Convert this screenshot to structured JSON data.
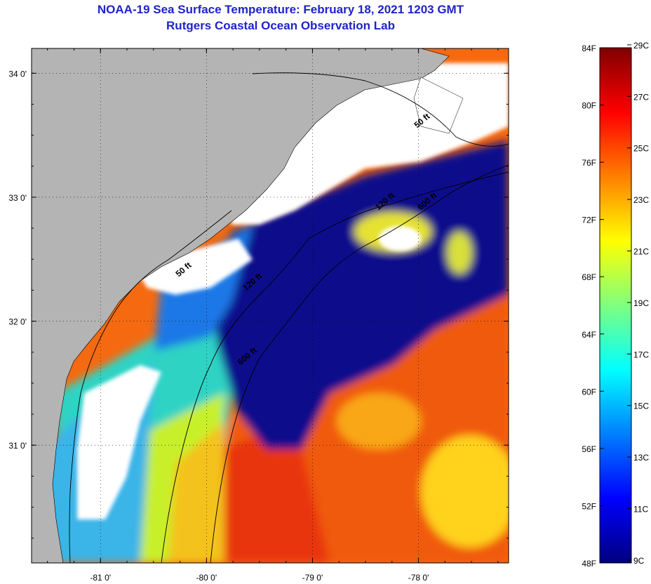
{
  "title": "NOAA-19 Sea Surface Temperature:  February 18, 2021 1203 GMT",
  "subtitle": "Rutgers Coastal Ocean Observation Lab",
  "map": {
    "lon_range": [
      -81.65,
      -77.15
    ],
    "lat_range": [
      30.05,
      34.2
    ],
    "lon_ticks": [
      {
        "value": -81,
        "label": "-81 0'"
      },
      {
        "value": -80,
        "label": "-80 0'"
      },
      {
        "value": -79,
        "label": "-79 0'"
      },
      {
        "value": -78,
        "label": "-78 0'"
      }
    ],
    "lat_ticks": [
      {
        "value": 34,
        "label": "34 0'"
      },
      {
        "value": 33,
        "label": "33 0'"
      },
      {
        "value": 32,
        "label": "32 0'"
      },
      {
        "value": 31,
        "label": "31 0'"
      }
    ],
    "land_color": "#b4b4b4",
    "cloud_color": "#ffffff",
    "grid": true,
    "contour_labels": [
      {
        "text": "50 ft",
        "lon": -77.95,
        "lat": 33.6
      },
      {
        "text": "50 ft",
        "lon": -80.2,
        "lat": 32.4
      },
      {
        "text": "120 ft",
        "lon": -78.3,
        "lat": 32.95
      },
      {
        "text": "120 ft",
        "lon": -79.55,
        "lat": 32.3
      },
      {
        "text": "600 ft",
        "lon": -77.9,
        "lat": 32.95
      },
      {
        "text": "600 ft",
        "lon": -79.6,
        "lat": 31.7
      }
    ]
  },
  "colorbar": {
    "f_labels": [
      "84F",
      "80F",
      "76F",
      "72F",
      "68F",
      "64F",
      "60F",
      "56F",
      "52F",
      "48F"
    ],
    "c_labels": [
      "29C",
      "27C",
      "25C",
      "23C",
      "21C",
      "19C",
      "17C",
      "15C",
      "13C",
      "11C",
      "9C"
    ],
    "f_range": [
      48,
      84
    ],
    "colors": [
      "#00007f",
      "#0000ff",
      "#007fff",
      "#00ffff",
      "#7fff7f",
      "#ffff00",
      "#ff7f00",
      "#ff0000",
      "#7f0000"
    ]
  }
}
